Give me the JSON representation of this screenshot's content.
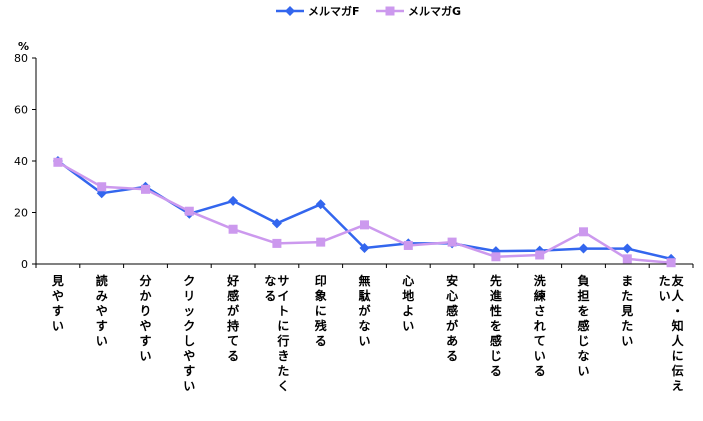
{
  "chart_data": {
    "type": "line",
    "ylabel": "%",
    "ylim": [
      0,
      80
    ],
    "yticks": [
      0,
      20,
      40,
      60,
      80
    ],
    "grid": false,
    "legend_position": "top-center",
    "categories": [
      "見やすい",
      "読みやすい",
      "分かりやすい",
      "クリックしやすい",
      "好感が持てる",
      "サイトに行きたくなる",
      "印象に残る",
      "無駄がない",
      "心地よい",
      "安心感がある",
      "先進性を感じる",
      "洗練されている",
      "負担を感じない",
      "また見たい",
      "友人・知人に伝えたい"
    ],
    "series": [
      {
        "name": "メルマガF",
        "color": "#3366ee",
        "marker": "diamond",
        "values": [
          40,
          27.5,
          30,
          19.5,
          24.5,
          15.8,
          23.2,
          6.2,
          8,
          8,
          5,
          5.2,
          6,
          6,
          2
        ]
      },
      {
        "name": "メルマガG",
        "color": "#cc99ee",
        "marker": "square",
        "values": [
          39.5,
          30,
          29,
          20.5,
          13.5,
          8,
          8.5,
          15.2,
          7.2,
          8.5,
          2.8,
          3.5,
          12.5,
          2,
          0.5
        ]
      }
    ]
  }
}
